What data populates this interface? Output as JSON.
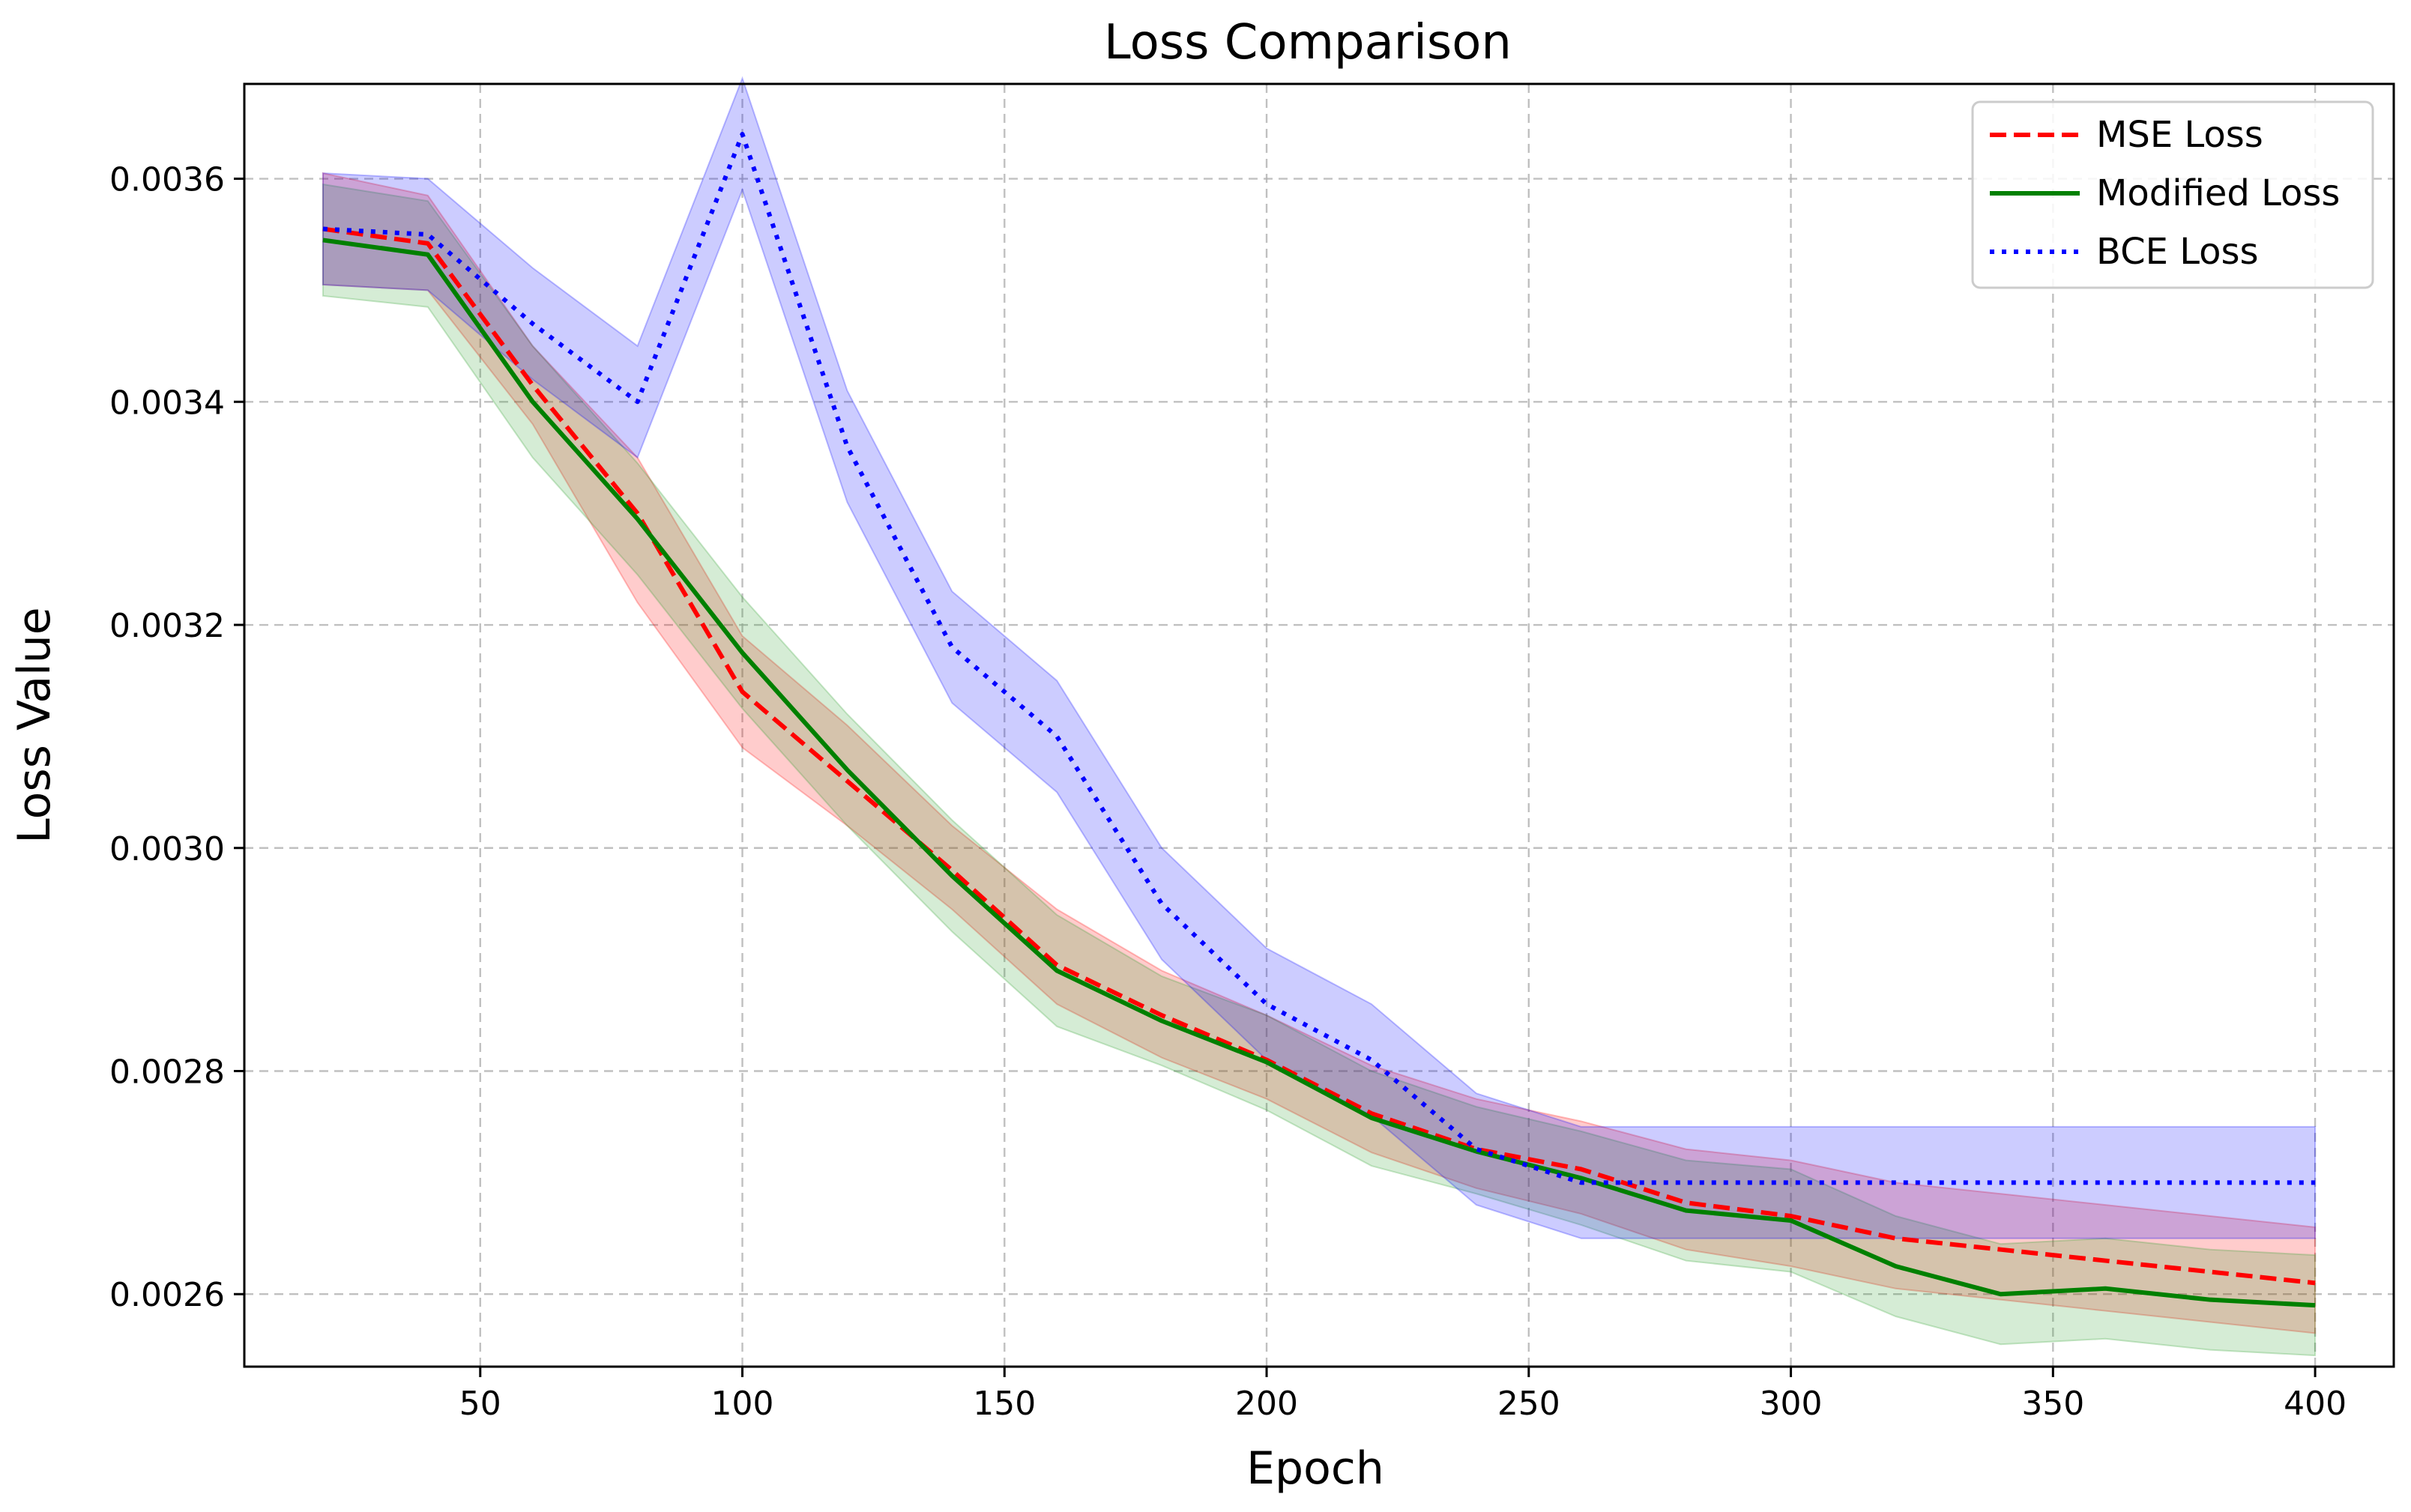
{
  "chart_data": {
    "type": "line",
    "title": "Loss Comparison",
    "xlabel": "Epoch",
    "ylabel": "Loss Value",
    "xlim": [
      5,
      415
    ],
    "ylim": [
      0.002535,
      0.003685
    ],
    "xticks": [
      50,
      100,
      150,
      200,
      250,
      300,
      350,
      400
    ],
    "yticks": [
      0.0026,
      0.0028,
      0.003,
      0.0032,
      0.0034,
      0.0036
    ],
    "ytick_labels": [
      "0.0026",
      "0.0028",
      "0.0030",
      "0.0032",
      "0.0034",
      "0.0036"
    ],
    "grid": true,
    "legend_position": "top-right",
    "x": [
      20,
      40,
      60,
      80,
      100,
      120,
      140,
      160,
      180,
      200,
      220,
      240,
      260,
      280,
      300,
      320,
      340,
      360,
      380,
      400
    ],
    "series": [
      {
        "name": "MSE Loss",
        "style": "dashed",
        "color": "#ff0000",
        "fill_color": "#ff0000",
        "values": [
          0.003555,
          0.003542,
          0.003415,
          0.0033,
          0.00314,
          0.00306,
          0.00298,
          0.002895,
          0.00285,
          0.00281,
          0.002762,
          0.00273,
          0.002712,
          0.002682,
          0.00267,
          0.00265,
          0.00264,
          0.00263,
          0.00262,
          0.00261
        ],
        "lower": [
          0.003505,
          0.0035,
          0.00338,
          0.00322,
          0.00309,
          0.00302,
          0.002945,
          0.00286,
          0.002812,
          0.002775,
          0.002727,
          0.002695,
          0.002672,
          0.00264,
          0.002625,
          0.002605,
          0.002595,
          0.002585,
          0.002575,
          0.002565
        ],
        "upper": [
          0.003605,
          0.003585,
          0.00345,
          0.00335,
          0.00319,
          0.00311,
          0.00302,
          0.002945,
          0.00289,
          0.00285,
          0.002805,
          0.002775,
          0.002755,
          0.00273,
          0.00272,
          0.0027,
          0.00269,
          0.00268,
          0.00267,
          0.00266
        ]
      },
      {
        "name": "Modified Loss",
        "style": "solid",
        "color": "#008000",
        "fill_color": "#2ca02c",
        "values": [
          0.003545,
          0.003532,
          0.0034,
          0.003295,
          0.003175,
          0.00307,
          0.002975,
          0.00289,
          0.002845,
          0.002808,
          0.002758,
          0.002728,
          0.002704,
          0.002675,
          0.002666,
          0.002625,
          0.0026,
          0.002605,
          0.002595,
          0.00259
        ],
        "lower": [
          0.003495,
          0.003485,
          0.00335,
          0.003245,
          0.003125,
          0.00302,
          0.002925,
          0.00284,
          0.002805,
          0.002765,
          0.002715,
          0.00269,
          0.002662,
          0.00263,
          0.00262,
          0.00258,
          0.002555,
          0.00256,
          0.00255,
          0.002545
        ],
        "upper": [
          0.003595,
          0.00358,
          0.00345,
          0.003345,
          0.003225,
          0.00312,
          0.003025,
          0.00294,
          0.002885,
          0.00285,
          0.0028,
          0.002768,
          0.002746,
          0.00272,
          0.002712,
          0.00267,
          0.002645,
          0.00265,
          0.00264,
          0.002635
        ]
      },
      {
        "name": "BCE Loss",
        "style": "dotted",
        "color": "#0000ff",
        "fill_color": "#0000ff",
        "values": [
          0.003555,
          0.00355,
          0.00347,
          0.0034,
          0.00364,
          0.00336,
          0.00318,
          0.0031,
          0.00295,
          0.00286,
          0.00281,
          0.00273,
          0.0027,
          0.0027,
          0.0027,
          0.0027,
          0.0027,
          0.0027,
          0.0027,
          0.0027
        ],
        "lower": [
          0.003505,
          0.0035,
          0.00342,
          0.00335,
          0.00359,
          0.00331,
          0.00313,
          0.00305,
          0.0029,
          0.00281,
          0.00276,
          0.00268,
          0.00265,
          0.00265,
          0.00265,
          0.00265,
          0.00265,
          0.00265,
          0.00265,
          0.00265
        ],
        "upper": [
          0.003605,
          0.0036,
          0.00352,
          0.00345,
          0.00369,
          0.00341,
          0.00323,
          0.00315,
          0.003,
          0.00291,
          0.00286,
          0.00278,
          0.00275,
          0.00275,
          0.00275,
          0.00275,
          0.00275,
          0.00275,
          0.00275,
          0.00275
        ]
      }
    ]
  }
}
